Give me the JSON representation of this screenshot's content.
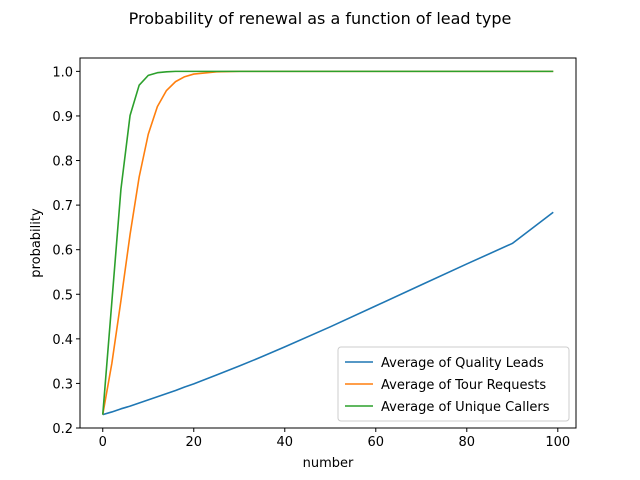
{
  "chart_data": {
    "type": "line",
    "title": "Probability of renewal as a function of lead type",
    "xlabel": "number",
    "ylabel": "probability",
    "xlim": [
      -5,
      104
    ],
    "ylim": [
      0.2,
      1.03
    ],
    "xticks": [
      0,
      20,
      40,
      60,
      80,
      100
    ],
    "yticks": [
      0.2,
      0.3,
      0.4,
      0.5,
      0.6,
      0.7,
      0.8,
      0.9,
      1.0
    ],
    "xtick_labels": [
      "0",
      "20",
      "40",
      "60",
      "80",
      "100"
    ],
    "ytick_labels": [
      "0.2",
      "0.3",
      "0.4",
      "0.5",
      "0.6",
      "0.7",
      "0.8",
      "0.9",
      "1.0"
    ],
    "grid": false,
    "legend_position": "lower-right",
    "x": [
      0,
      2,
      4,
      6,
      8,
      10,
      12,
      14,
      16,
      18,
      20,
      25,
      30,
      35,
      40,
      50,
      60,
      70,
      80,
      90,
      99
    ],
    "series": [
      {
        "name": "Average of Quality Leads",
        "color": "#1f77b4",
        "values": [
          0.23,
          0.236,
          0.243,
          0.249,
          0.256,
          0.263,
          0.27,
          0.277,
          0.284,
          0.292,
          0.299,
          0.319,
          0.339,
          0.36,
          0.382,
          0.427,
          0.474,
          0.521,
          0.568,
          0.614,
          0.684
        ]
      },
      {
        "name": "Average of Tour Requests",
        "color": "#ff7f0e",
        "values": [
          0.23,
          0.345,
          0.486,
          0.634,
          0.763,
          0.859,
          0.921,
          0.957,
          0.977,
          0.988,
          0.994,
          0.999,
          1.0,
          1.0,
          1.0,
          1.0,
          1.0,
          1.0,
          1.0,
          1.0,
          1.0
        ]
      },
      {
        "name": "Average of Unique Callers",
        "color": "#2ca02c",
        "values": [
          0.23,
          0.483,
          0.736,
          0.901,
          0.969,
          0.991,
          0.997,
          0.999,
          1.0,
          1.0,
          1.0,
          1.0,
          1.0,
          1.0,
          1.0,
          1.0,
          1.0,
          1.0,
          1.0,
          1.0,
          1.0
        ]
      }
    ]
  }
}
